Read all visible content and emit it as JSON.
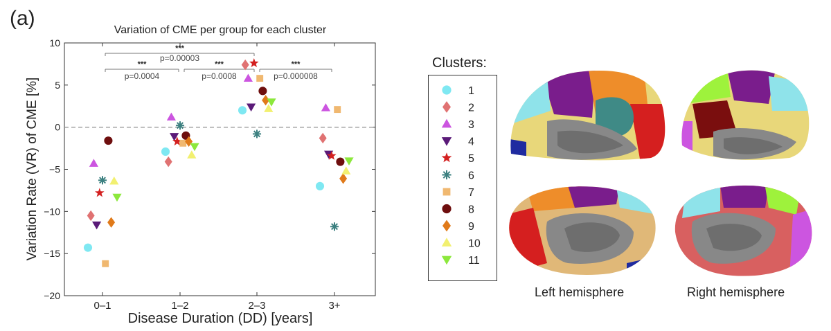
{
  "panel_label": "(a)",
  "chart_data": {
    "type": "scatter",
    "title": "Variation of CME per group for each cluster",
    "xlabel": "Disease Duration (DD) [years]",
    "ylabel": "Variation Rate (VR) of CME [%]",
    "categories": [
      "0–1",
      "1–2",
      "2–3",
      "3+"
    ],
    "ylim": [
      -20,
      10
    ],
    "yticks": [
      -20,
      -15,
      -10,
      -5,
      0,
      5,
      10
    ],
    "ytick_labels": [
      "−20",
      "−15",
      "−10",
      "−5",
      "0",
      "5",
      "10"
    ],
    "zero_line": true,
    "grid": false,
    "series": [
      {
        "name": "1",
        "color": "#7fe8f2",
        "marker": "circle",
        "values": [
          -14.3,
          -2.9,
          2.0,
          -7.0
        ]
      },
      {
        "name": "2",
        "color": "#e07272",
        "marker": "diamond",
        "values": [
          -10.5,
          -4.1,
          7.4,
          -1.3
        ]
      },
      {
        "name": "3",
        "color": "#cc55e0",
        "marker": "triangle-up",
        "values": [
          -4.3,
          1.2,
          5.8,
          2.3
        ]
      },
      {
        "name": "4",
        "color": "#5a1a78",
        "marker": "triangle-down",
        "values": [
          -11.6,
          -1.1,
          2.4,
          -3.2
        ]
      },
      {
        "name": "5",
        "color": "#d32020",
        "marker": "star",
        "values": [
          -7.8,
          -1.7,
          7.6,
          -3.4
        ]
      },
      {
        "name": "6",
        "color": "#3c8080",
        "marker": "asterisk",
        "values": [
          -6.3,
          0.2,
          -0.8,
          -11.8
        ]
      },
      {
        "name": "7",
        "color": "#f0b870",
        "marker": "square",
        "values": [
          -16.2,
          -1.9,
          5.8,
          2.1
        ]
      },
      {
        "name": "8",
        "color": "#6e0e0e",
        "marker": "circle",
        "values": [
          -1.6,
          -1.0,
          4.3,
          -4.1
        ]
      },
      {
        "name": "9",
        "color": "#e07a1a",
        "marker": "diamond",
        "values": [
          -11.3,
          -1.7,
          3.2,
          -6.1
        ]
      },
      {
        "name": "10",
        "color": "#f2f070",
        "marker": "triangle-up",
        "values": [
          -6.4,
          -3.3,
          2.2,
          -5.2
        ]
      },
      {
        "name": "11",
        "color": "#8ce83c",
        "marker": "triangle-down",
        "values": [
          -8.3,
          -2.3,
          3.0,
          -4.0
        ]
      }
    ],
    "significance": [
      {
        "from": 0,
        "to": 2,
        "stars": "***",
        "p": "p=0.00003"
      },
      {
        "from": 0,
        "to": 1,
        "stars": "***",
        "p": "p=0.0004"
      },
      {
        "from": 1,
        "to": 2,
        "stars": "***",
        "p": "p=0.0008"
      },
      {
        "from": 2,
        "to": 3,
        "stars": "***",
        "p": "p=0.000008"
      }
    ],
    "legend": {
      "title": "Clusters:",
      "placement": "right"
    }
  },
  "brains": {
    "left_caption": "Left hemisphere",
    "right_caption": "Right hemisphere"
  }
}
